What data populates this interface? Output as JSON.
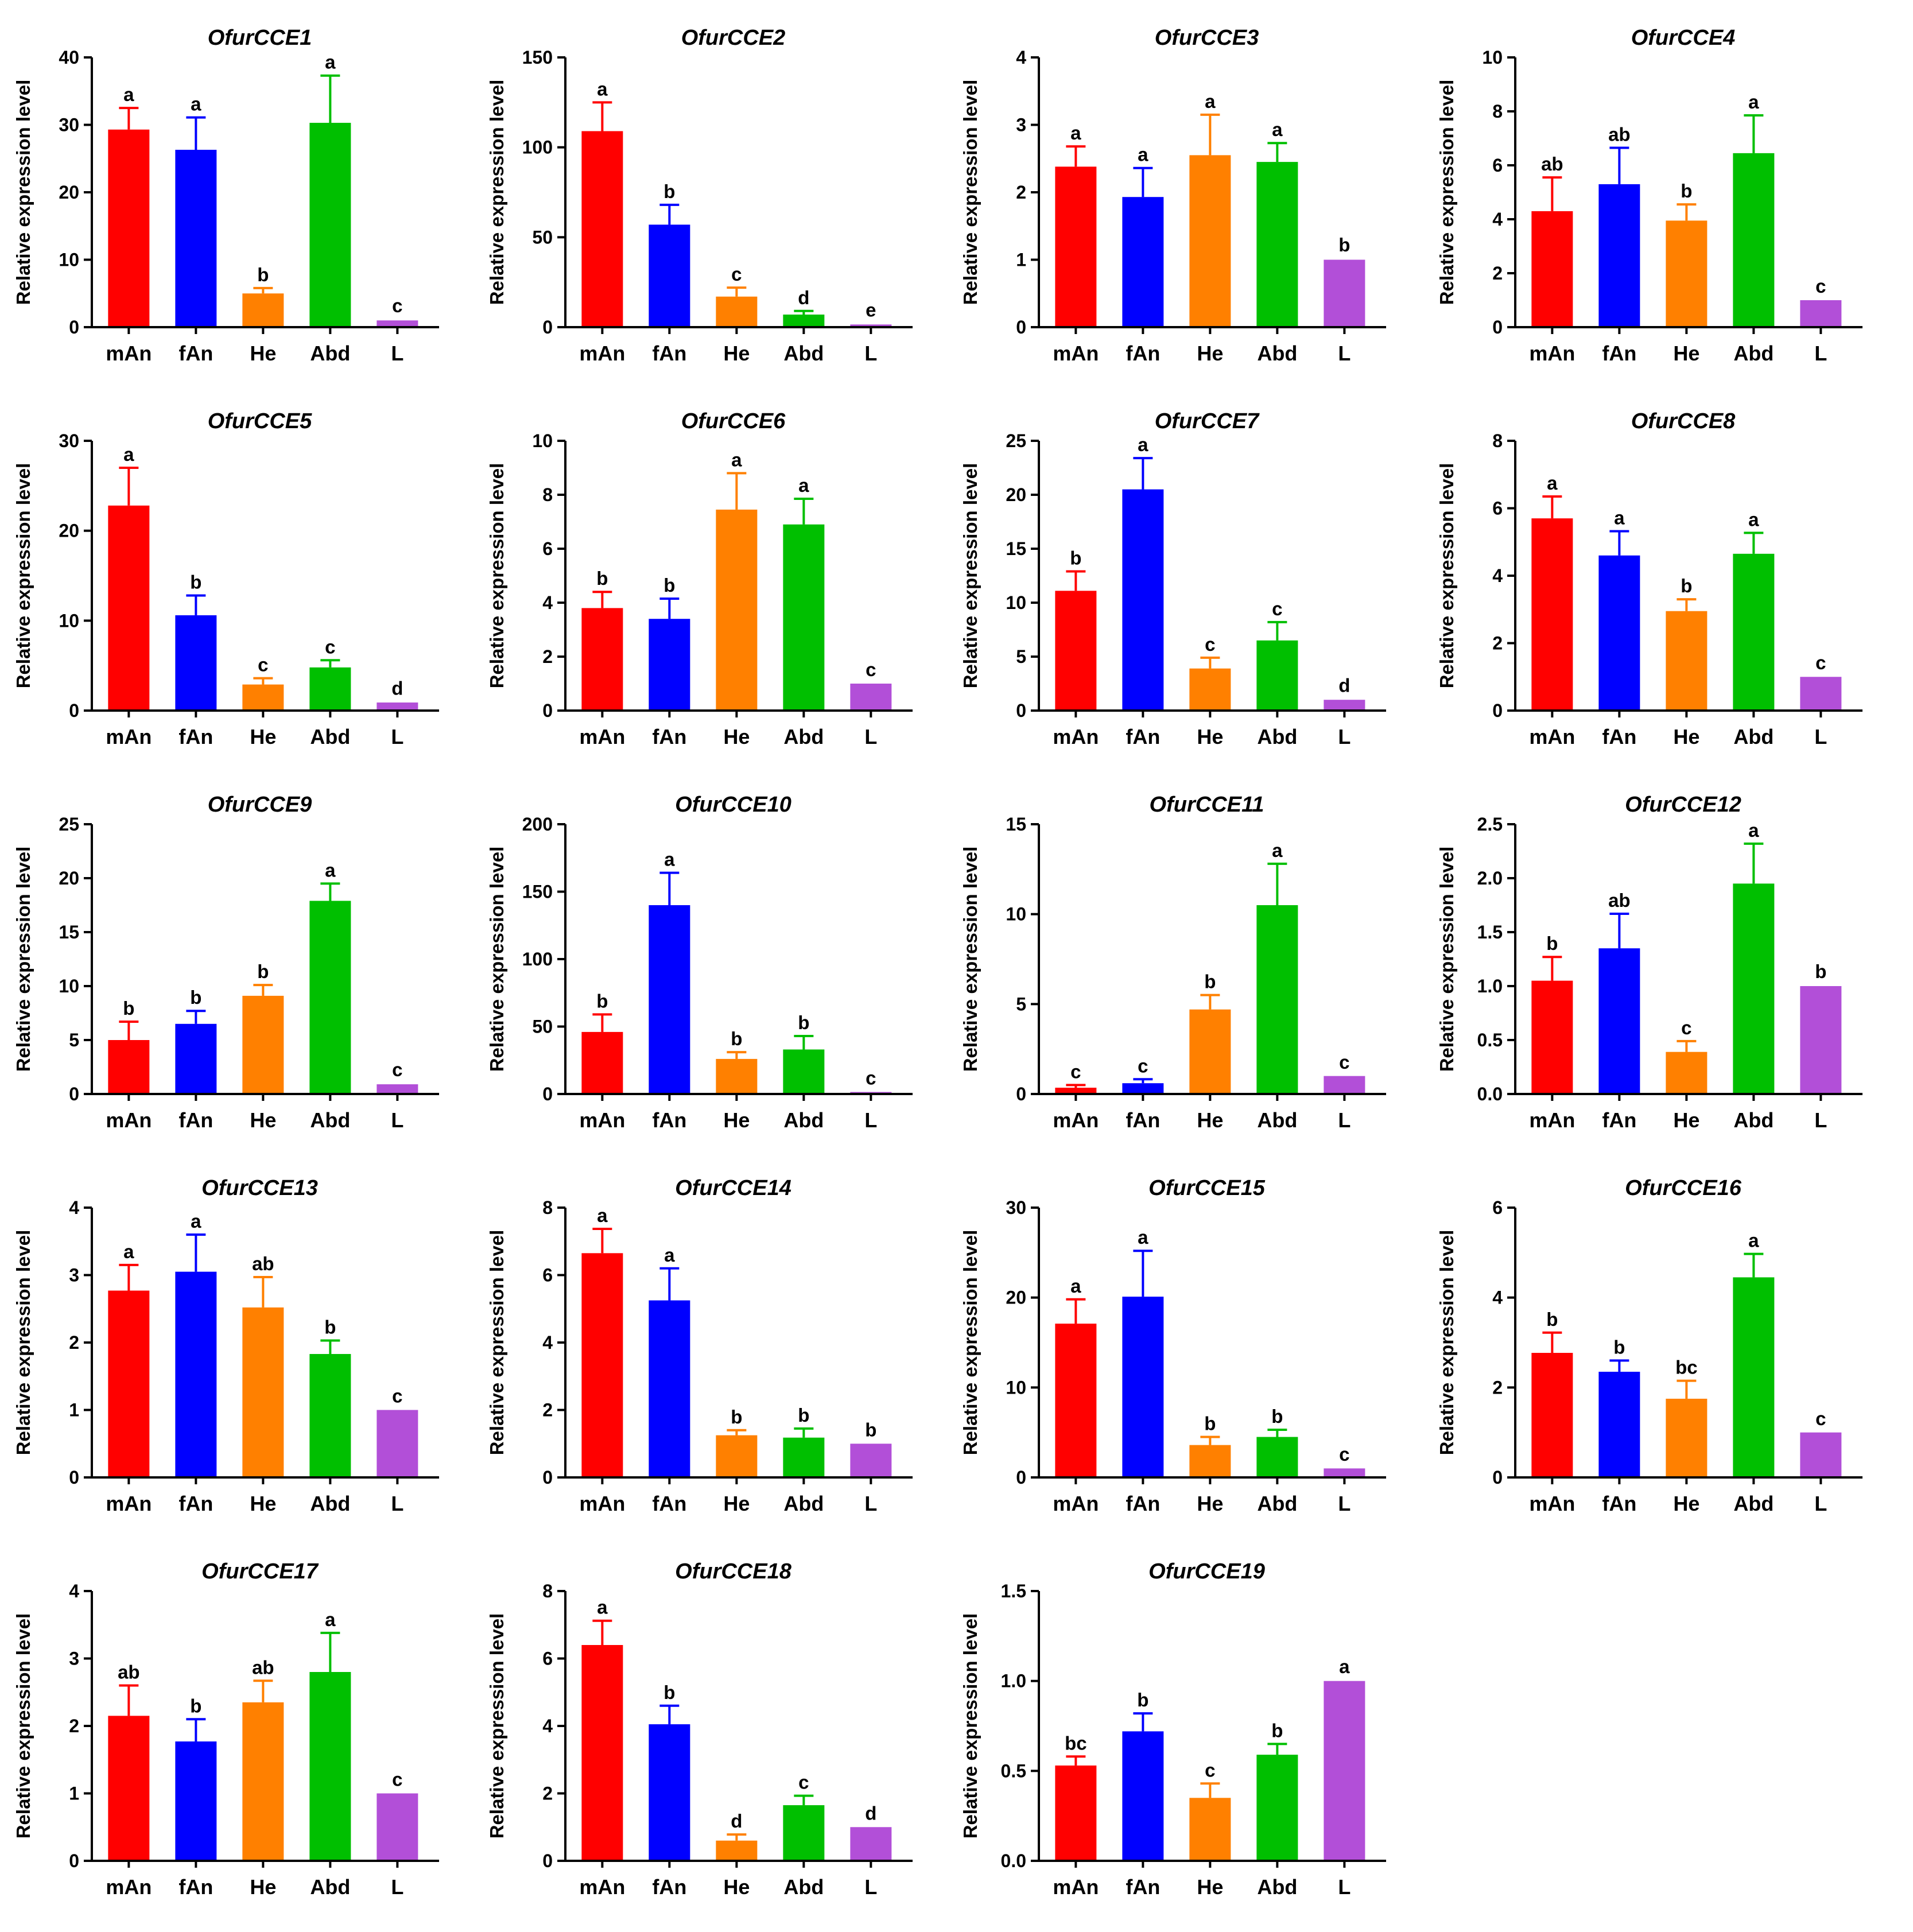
{
  "colors": {
    "mAn": "#ff0000",
    "fAn": "#0000ff",
    "He": "#ff8000",
    "Abd": "#00bf00",
    "L": "#b24fd8"
  },
  "chart_data": [
    {
      "type": "bar",
      "title": "OfurCCE1",
      "ylabel": "Relative expression level",
      "categories": [
        "mAn",
        "fAn",
        "He",
        "Abd",
        "L"
      ],
      "yticks": [
        "0",
        "10",
        "20",
        "30",
        "40"
      ],
      "ylim": [
        0,
        40
      ],
      "values": [
        29.3,
        26.3,
        5.0,
        30.3,
        1.0
      ],
      "errors": [
        3.2,
        4.8,
        0.8,
        7.0,
        0.2
      ],
      "significance": [
        "a",
        "a",
        "b",
        "a",
        "c"
      ]
    },
    {
      "type": "bar",
      "title": "OfurCCE2",
      "ylabel": "Relative expression level",
      "categories": [
        "mAn",
        "fAn",
        "He",
        "Abd",
        "L"
      ],
      "yticks": [
        "0",
        "50",
        "100",
        "150"
      ],
      "ylim": [
        0,
        150
      ],
      "values": [
        109,
        57,
        17,
        7,
        1.5
      ],
      "errors": [
        16,
        11,
        5,
        2,
        0.5
      ],
      "significance": [
        "a",
        "b",
        "c",
        "d",
        "e"
      ]
    },
    {
      "type": "bar",
      "title": "OfurCCE3",
      "ylabel": "Relative expression level",
      "categories": [
        "mAn",
        "fAn",
        "He",
        "Abd",
        "L"
      ],
      "yticks": [
        "0",
        "1",
        "2",
        "3",
        "4"
      ],
      "ylim": [
        0,
        4
      ],
      "values": [
        2.38,
        1.93,
        2.55,
        2.45,
        1.0
      ],
      "errors": [
        0.3,
        0.43,
        0.6,
        0.28,
        0.02
      ],
      "significance": [
        "a",
        "a",
        "a",
        "a",
        "b"
      ]
    },
    {
      "type": "bar",
      "title": "OfurCCE4",
      "ylabel": "Relative expression level",
      "categories": [
        "mAn",
        "fAn",
        "He",
        "Abd",
        "L"
      ],
      "yticks": [
        "0",
        "2",
        "4",
        "6",
        "8",
        "10"
      ],
      "ylim": [
        0,
        10
      ],
      "values": [
        4.3,
        5.3,
        3.95,
        6.45,
        1.0
      ],
      "errors": [
        1.25,
        1.35,
        0.6,
        1.4,
        0.02
      ],
      "significance": [
        "ab",
        "ab",
        "b",
        "a",
        "c"
      ]
    },
    {
      "type": "bar",
      "title": "OfurCCE5",
      "ylabel": "Relative expression level",
      "categories": [
        "mAn",
        "fAn",
        "He",
        "Abd",
        "L"
      ],
      "yticks": [
        "0",
        "10",
        "20",
        "30"
      ],
      "ylim": [
        0,
        30
      ],
      "values": [
        22.8,
        10.6,
        2.9,
        4.8,
        0.9
      ],
      "errors": [
        4.2,
        2.2,
        0.7,
        0.8,
        0.1
      ],
      "significance": [
        "a",
        "b",
        "c",
        "c",
        "d"
      ]
    },
    {
      "type": "bar",
      "title": "OfurCCE6",
      "ylabel": "Relative expression level",
      "categories": [
        "mAn",
        "fAn",
        "He",
        "Abd",
        "L"
      ],
      "yticks": [
        "0",
        "2",
        "4",
        "6",
        "8",
        "10"
      ],
      "ylim": [
        0,
        10
      ],
      "values": [
        3.8,
        3.4,
        7.45,
        6.9,
        1.0
      ],
      "errors": [
        0.6,
        0.75,
        1.35,
        0.95,
        0.02
      ],
      "significance": [
        "b",
        "b",
        "a",
        "a",
        "c"
      ]
    },
    {
      "type": "bar",
      "title": "OfurCCE7",
      "ylabel": "Relative expression level",
      "categories": [
        "mAn",
        "fAn",
        "He",
        "Abd",
        "L"
      ],
      "yticks": [
        "0",
        "5",
        "10",
        "15",
        "20",
        "25"
      ],
      "ylim": [
        0,
        25
      ],
      "values": [
        11.1,
        20.5,
        3.9,
        6.5,
        1.0
      ],
      "errors": [
        1.8,
        2.9,
        1.0,
        1.7,
        0.1
      ],
      "significance": [
        "b",
        "a",
        "c",
        "c",
        "d"
      ]
    },
    {
      "type": "bar",
      "title": "OfurCCE8",
      "ylabel": "Relative expression level",
      "categories": [
        "mAn",
        "fAn",
        "He",
        "Abd",
        "L"
      ],
      "yticks": [
        "0",
        "2",
        "4",
        "6",
        "8"
      ],
      "ylim": [
        0,
        8
      ],
      "values": [
        5.7,
        4.6,
        2.95,
        4.65,
        1.0
      ],
      "errors": [
        0.65,
        0.72,
        0.35,
        0.62,
        0.02
      ],
      "significance": [
        "a",
        "a",
        "b",
        "a",
        "c"
      ]
    },
    {
      "type": "bar",
      "title": "OfurCCE9",
      "ylabel": "Relative expression level",
      "categories": [
        "mAn",
        "fAn",
        "He",
        "Abd",
        "L"
      ],
      "yticks": [
        "0",
        "5",
        "10",
        "15",
        "20",
        "25"
      ],
      "ylim": [
        0,
        25
      ],
      "values": [
        5.0,
        6.5,
        9.1,
        17.9,
        0.9
      ],
      "errors": [
        1.7,
        1.2,
        1.0,
        1.6,
        0.1
      ],
      "significance": [
        "b",
        "b",
        "b",
        "a",
        "c"
      ]
    },
    {
      "type": "bar",
      "title": "OfurCCE10",
      "ylabel": "Relative expression level",
      "categories": [
        "mAn",
        "fAn",
        "He",
        "Abd",
        "L"
      ],
      "yticks": [
        "0",
        "50",
        "100",
        "150",
        "200"
      ],
      "ylim": [
        0,
        200
      ],
      "values": [
        46,
        140,
        26,
        33,
        1.5
      ],
      "errors": [
        13,
        24,
        5,
        10,
        0.5
      ],
      "significance": [
        "b",
        "a",
        "b",
        "b",
        "c"
      ]
    },
    {
      "type": "bar",
      "title": "OfurCCE11",
      "ylabel": "Relative expression level",
      "categories": [
        "mAn",
        "fAn",
        "He",
        "Abd",
        "L"
      ],
      "yticks": [
        "0",
        "5",
        "10",
        "15"
      ],
      "ylim": [
        0,
        15
      ],
      "values": [
        0.35,
        0.6,
        4.7,
        10.5,
        1.0
      ],
      "errors": [
        0.15,
        0.22,
        0.8,
        2.3,
        0.02
      ],
      "significance": [
        "c",
        "c",
        "b",
        "a",
        "c"
      ]
    },
    {
      "type": "bar",
      "title": "OfurCCE12",
      "ylabel": "Relative expression level",
      "categories": [
        "mAn",
        "fAn",
        "He",
        "Abd",
        "L"
      ],
      "yticks": [
        "0.0",
        "0.5",
        "1.0",
        "1.5",
        "2.0",
        "2.5"
      ],
      "ylim": [
        0,
        2.5
      ],
      "values": [
        1.05,
        1.35,
        0.39,
        1.95,
        1.0
      ],
      "errors": [
        0.22,
        0.32,
        0.1,
        0.37,
        0.01
      ],
      "significance": [
        "b",
        "ab",
        "c",
        "a",
        "b"
      ]
    },
    {
      "type": "bar",
      "title": "OfurCCE13",
      "ylabel": "Relative expression level",
      "categories": [
        "mAn",
        "fAn",
        "He",
        "Abd",
        "L"
      ],
      "yticks": [
        "0",
        "1",
        "2",
        "3",
        "4"
      ],
      "ylim": [
        0,
        4
      ],
      "values": [
        2.77,
        3.05,
        2.52,
        1.83,
        1.0
      ],
      "errors": [
        0.38,
        0.55,
        0.45,
        0.2,
        0.01
      ],
      "significance": [
        "a",
        "a",
        "ab",
        "b",
        "c"
      ]
    },
    {
      "type": "bar",
      "title": "OfurCCE14",
      "ylabel": "Relative expression level",
      "categories": [
        "mAn",
        "fAn",
        "He",
        "Abd",
        "L"
      ],
      "yticks": [
        "0",
        "2",
        "4",
        "6",
        "8"
      ],
      "ylim": [
        0,
        8
      ],
      "values": [
        6.65,
        5.25,
        1.25,
        1.18,
        1.0
      ],
      "errors": [
        0.72,
        0.95,
        0.15,
        0.27,
        0.01
      ],
      "significance": [
        "a",
        "a",
        "b",
        "b",
        "b"
      ]
    },
    {
      "type": "bar",
      "title": "OfurCCE15",
      "ylabel": "Relative expression level",
      "categories": [
        "mAn",
        "fAn",
        "He",
        "Abd",
        "L"
      ],
      "yticks": [
        "0",
        "10",
        "20",
        "30"
      ],
      "ylim": [
        0,
        30
      ],
      "values": [
        17.1,
        20.1,
        3.6,
        4.5,
        1.0
      ],
      "errors": [
        2.7,
        5.1,
        0.9,
        0.8,
        0.1
      ],
      "significance": [
        "a",
        "a",
        "b",
        "b",
        "c"
      ]
    },
    {
      "type": "bar",
      "title": "OfurCCE16",
      "ylabel": "Relative expression level",
      "categories": [
        "mAn",
        "fAn",
        "He",
        "Abd",
        "L"
      ],
      "yticks": [
        "0",
        "2",
        "4",
        "6"
      ],
      "ylim": [
        0,
        6
      ],
      "values": [
        2.77,
        2.35,
        1.75,
        4.45,
        1.0
      ],
      "errors": [
        0.45,
        0.25,
        0.4,
        0.52,
        0.01
      ],
      "significance": [
        "b",
        "b",
        "bc",
        "a",
        "c"
      ]
    },
    {
      "type": "bar",
      "title": "OfurCCE17",
      "ylabel": "Relative expression level",
      "categories": [
        "mAn",
        "fAn",
        "He",
        "Abd",
        "L"
      ],
      "yticks": [
        "0",
        "1",
        "2",
        "3",
        "4"
      ],
      "ylim": [
        0,
        4
      ],
      "values": [
        2.15,
        1.77,
        2.35,
        2.8,
        1.0
      ],
      "errors": [
        0.45,
        0.33,
        0.32,
        0.58,
        0.01
      ],
      "significance": [
        "ab",
        "b",
        "ab",
        "a",
        "c"
      ]
    },
    {
      "type": "bar",
      "title": "OfurCCE18",
      "ylabel": "Relative expression level",
      "categories": [
        "mAn",
        "fAn",
        "He",
        "Abd",
        "L"
      ],
      "yticks": [
        "0",
        "2",
        "4",
        "6",
        "8"
      ],
      "ylim": [
        0,
        8
      ],
      "values": [
        6.4,
        4.05,
        0.6,
        1.65,
        1.0
      ],
      "errors": [
        0.72,
        0.55,
        0.18,
        0.28,
        0.01
      ],
      "significance": [
        "a",
        "b",
        "d",
        "c",
        "d"
      ]
    },
    {
      "type": "bar",
      "title": "OfurCCE19",
      "ylabel": "Relative expression level",
      "categories": [
        "mAn",
        "fAn",
        "He",
        "Abd",
        "L"
      ],
      "yticks": [
        "0.0",
        "0.5",
        "1.0",
        "1.5"
      ],
      "ylim": [
        0,
        1.5
      ],
      "values": [
        0.53,
        0.72,
        0.35,
        0.59,
        1.0
      ],
      "errors": [
        0.05,
        0.1,
        0.08,
        0.06,
        0.005
      ],
      "significance": [
        "bc",
        "b",
        "c",
        "b",
        "a"
      ]
    }
  ]
}
